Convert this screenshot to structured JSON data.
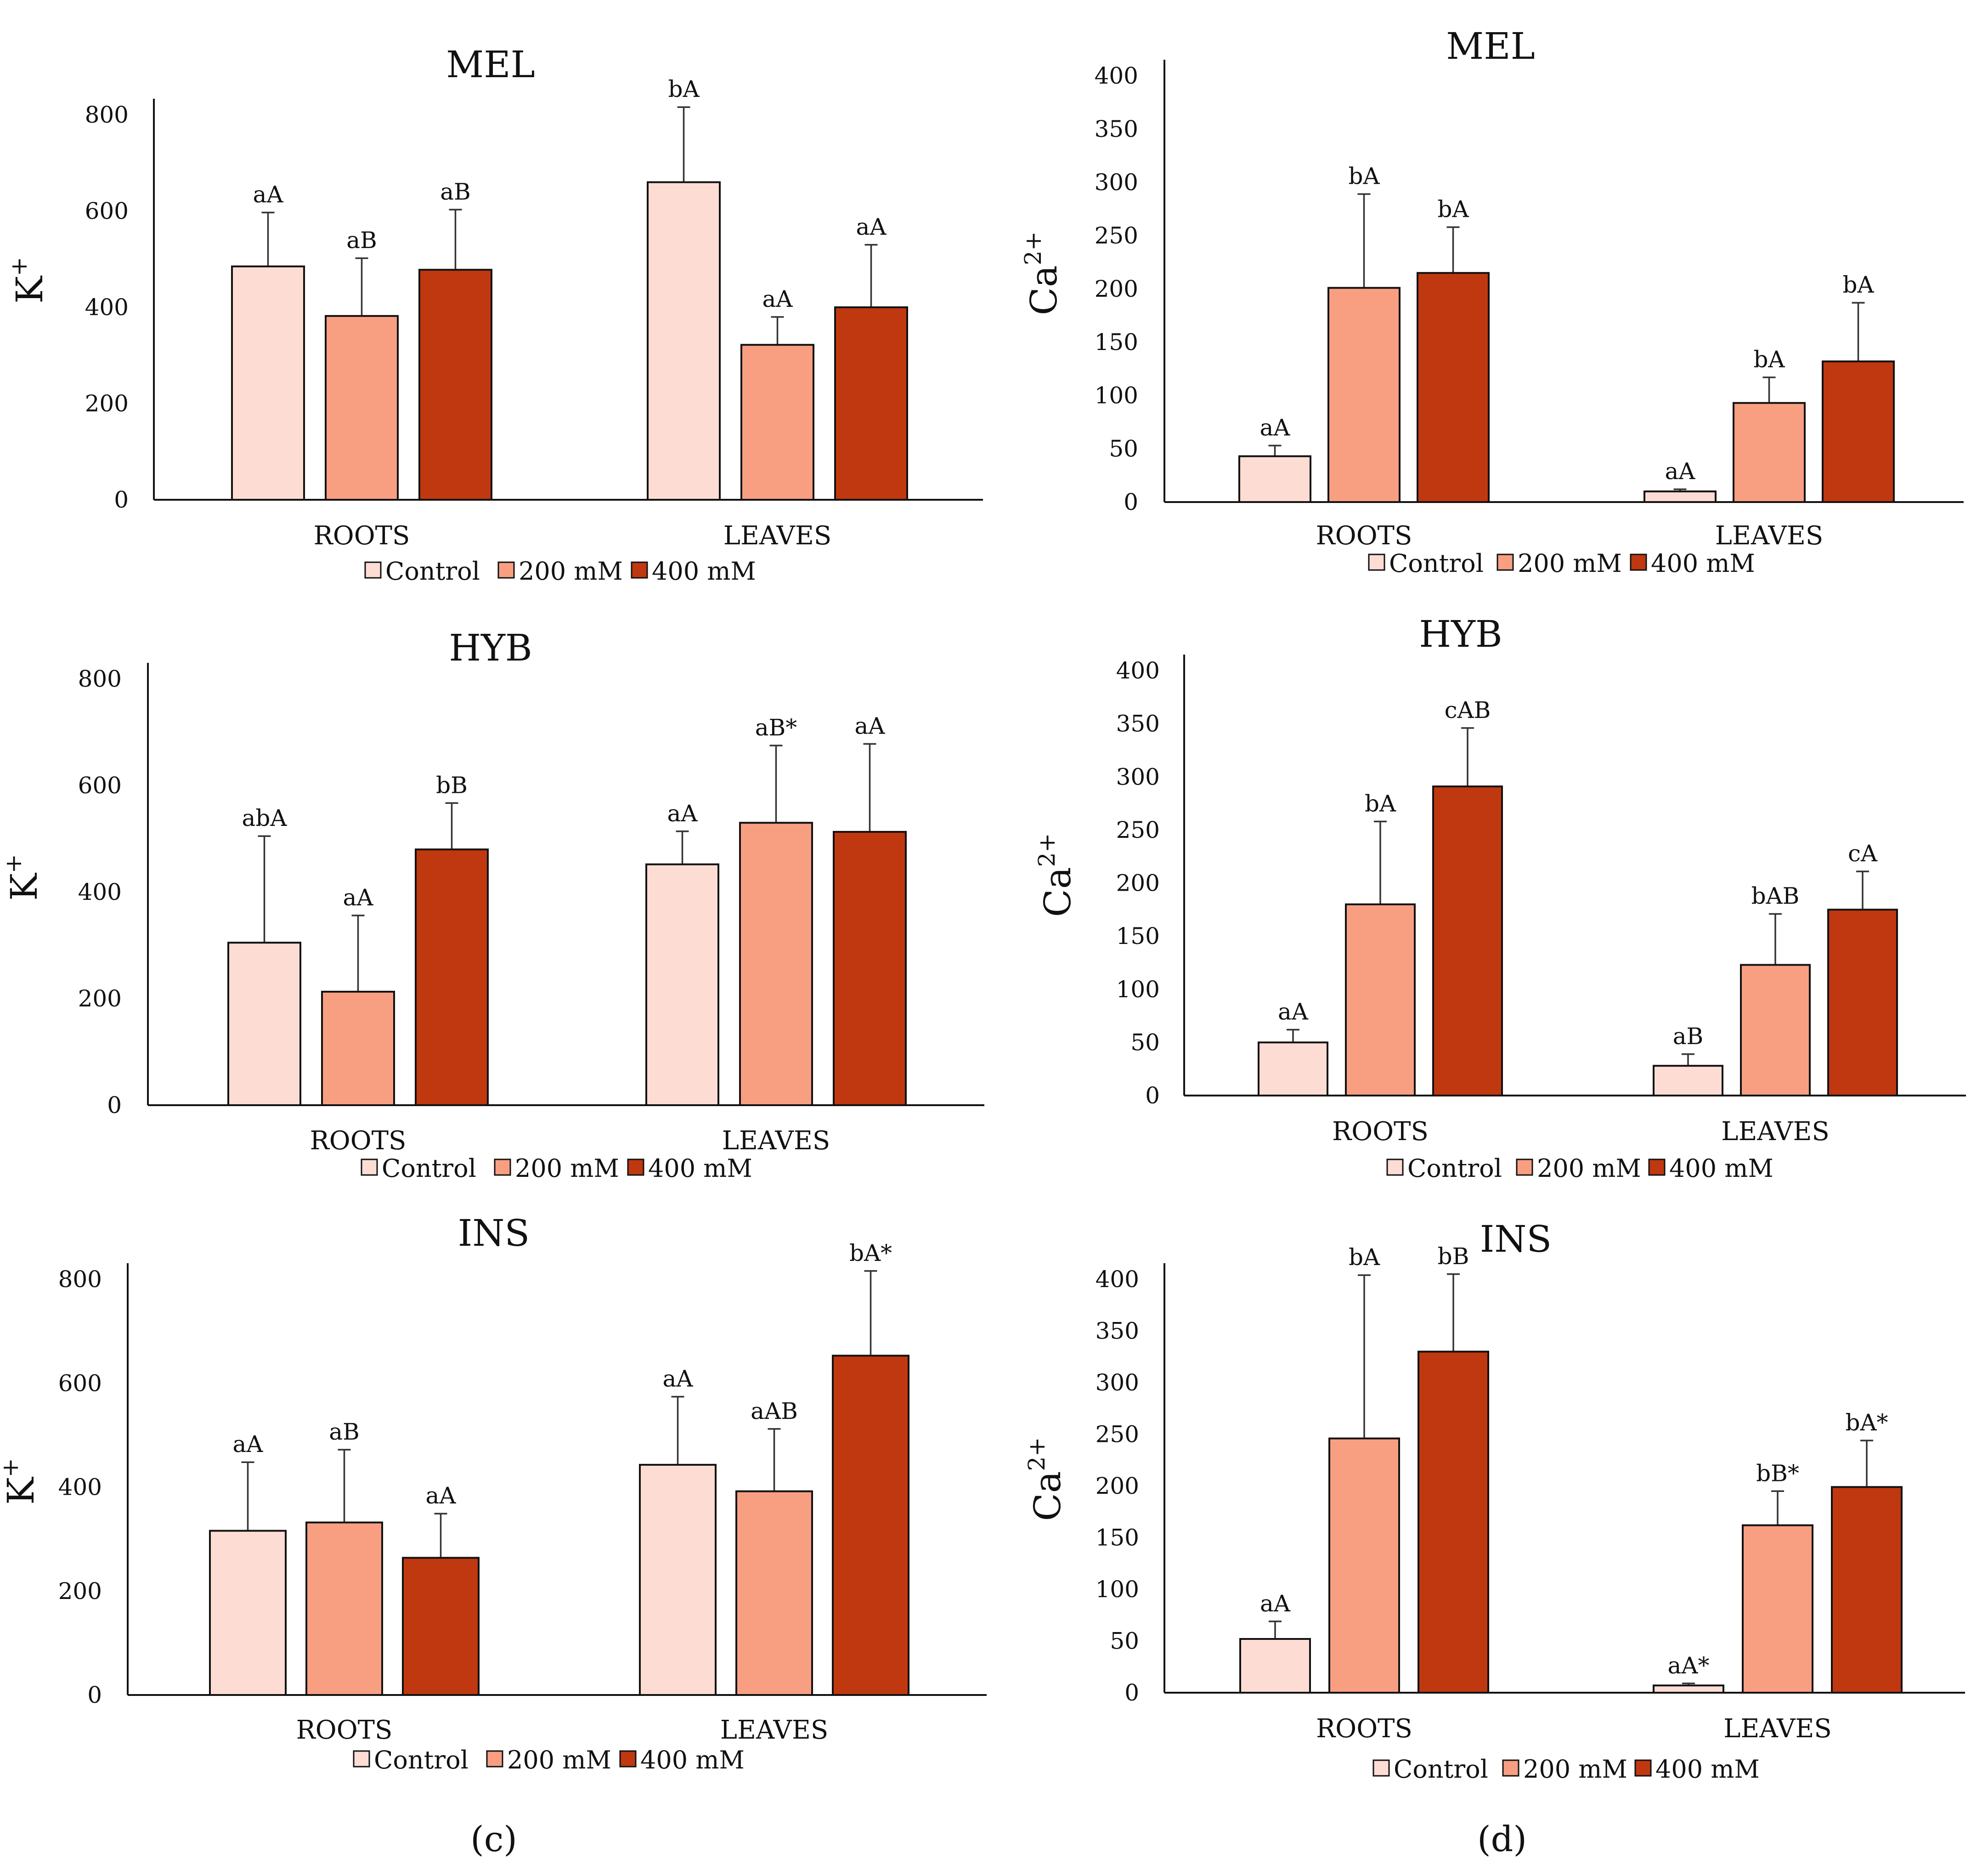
{
  "colors": {
    "control": "#FDDDD3",
    "mm200": "#F89F82",
    "mm400": "#C0380F"
  },
  "chart_data": [
    {
      "type": "bar",
      "title": "MEL",
      "ylabel": "K+",
      "ylabel_base": "K",
      "ylabel_sup": "+",
      "ylim": [
        0,
        800
      ],
      "yticks": [
        0,
        200,
        400,
        600,
        800
      ],
      "categories": [
        "ROOTS",
        "LEAVES"
      ],
      "series": [
        {
          "name": "Control",
          "values": [
            485,
            660
          ],
          "errors": [
            112,
            175
          ],
          "labels": [
            "aA",
            "bA"
          ]
        },
        {
          "name": "200 mM",
          "values": [
            382,
            322
          ],
          "errors": [
            120,
            58
          ],
          "labels": [
            "aB",
            "aA"
          ]
        },
        {
          "name": "400 mM",
          "values": [
            478,
            400
          ],
          "errors": [
            125,
            130
          ],
          "labels": [
            "aB",
            "aA"
          ]
        }
      ]
    },
    {
      "type": "bar",
      "title": "MEL",
      "ylabel": "Ca2+",
      "ylabel_base": "Ca",
      "ylabel_sup": "2+",
      "ylim": [
        0,
        400
      ],
      "yticks": [
        0,
        50,
        100,
        150,
        200,
        250,
        300,
        350,
        400
      ],
      "categories": [
        "ROOTS",
        "LEAVES"
      ],
      "series": [
        {
          "name": "Control",
          "values": [
            43,
            10
          ],
          "errors": [
            10,
            2
          ],
          "labels": [
            "aA",
            "aA"
          ]
        },
        {
          "name": "200 mM",
          "values": [
            201,
            93
          ],
          "errors": [
            88,
            24
          ],
          "labels": [
            "bA",
            "bA"
          ]
        },
        {
          "name": "400 mM",
          "values": [
            215,
            132
          ],
          "errors": [
            43,
            55
          ],
          "labels": [
            "bA",
            "bA"
          ]
        }
      ]
    },
    {
      "type": "bar",
      "title": "HYB",
      "ylabel": "K+",
      "ylabel_base": "K",
      "ylabel_sup": "+",
      "ylim": [
        0,
        800
      ],
      "yticks": [
        0,
        200,
        400,
        600,
        800
      ],
      "categories": [
        "ROOTS",
        "LEAVES"
      ],
      "series": [
        {
          "name": "Control",
          "values": [
            305,
            452
          ],
          "errors": [
            200,
            62
          ],
          "labels": [
            "abA",
            "aA"
          ]
        },
        {
          "name": "200 mM",
          "values": [
            213,
            530
          ],
          "errors": [
            143,
            145
          ],
          "labels": [
            "aA",
            "aB*"
          ]
        },
        {
          "name": "400 mM",
          "values": [
            480,
            513
          ],
          "errors": [
            87,
            165
          ],
          "labels": [
            "bB",
            "aA"
          ]
        }
      ]
    },
    {
      "type": "bar",
      "title": "HYB",
      "ylabel": "Ca2+",
      "ylabel_base": "Ca",
      "ylabel_sup": "2+",
      "ylim": [
        0,
        400
      ],
      "yticks": [
        0,
        50,
        100,
        150,
        200,
        250,
        300,
        350,
        400
      ],
      "categories": [
        "ROOTS",
        "LEAVES"
      ],
      "series": [
        {
          "name": "Control",
          "values": [
            50,
            28
          ],
          "errors": [
            12,
            11
          ],
          "labels": [
            "aA",
            "aB"
          ]
        },
        {
          "name": "200 mM",
          "values": [
            180,
            123
          ],
          "errors": [
            78,
            48
          ],
          "labels": [
            "bA",
            "bAB"
          ]
        },
        {
          "name": "400 mM",
          "values": [
            291,
            175
          ],
          "errors": [
            55,
            36
          ],
          "labels": [
            "cAB",
            "cA"
          ]
        }
      ]
    },
    {
      "type": "bar",
      "title": "INS",
      "ylabel": "K+",
      "ylabel_base": "K",
      "ylabel_sup": "+",
      "ylim": [
        0,
        800
      ],
      "yticks": [
        0,
        200,
        400,
        600,
        800
      ],
      "categories": [
        "ROOTS",
        "LEAVES"
      ],
      "series": [
        {
          "name": "Control",
          "values": [
            316,
            443
          ],
          "errors": [
            132,
            131
          ],
          "labels": [
            "aA",
            "aA"
          ]
        },
        {
          "name": "200 mM",
          "values": [
            332,
            392
          ],
          "errors": [
            140,
            120
          ],
          "labels": [
            "aB",
            "aAB"
          ]
        },
        {
          "name": "400 mM",
          "values": [
            264,
            653
          ],
          "errors": [
            85,
            167
          ],
          "labels": [
            "aA",
            "bA*"
          ]
        }
      ]
    },
    {
      "type": "bar",
      "title": "INS",
      "ylabel": "Ca2+",
      "ylabel_base": "Ca",
      "ylabel_sup": "2+",
      "ylim": [
        0,
        400
      ],
      "yticks": [
        0,
        50,
        100,
        150,
        200,
        250,
        300,
        350,
        400
      ],
      "categories": [
        "ROOTS",
        "LEAVES"
      ],
      "series": [
        {
          "name": "Control",
          "values": [
            52,
            7
          ],
          "errors": [
            17,
            2
          ],
          "labels": [
            "aA",
            "aA*"
          ]
        },
        {
          "name": "200 mM",
          "values": [
            246,
            162
          ],
          "errors": [
            158,
            33
          ],
          "labels": [
            "bA",
            "bB*"
          ]
        },
        {
          "name": "400 mM",
          "values": [
            330,
            199
          ],
          "errors": [
            75,
            45
          ],
          "labels": [
            "bB",
            "bA*"
          ]
        }
      ]
    }
  ],
  "legend": {
    "items": [
      "Control",
      "200 mM",
      "400 mM"
    ]
  },
  "captions": [
    "(c)",
    "(d)"
  ]
}
